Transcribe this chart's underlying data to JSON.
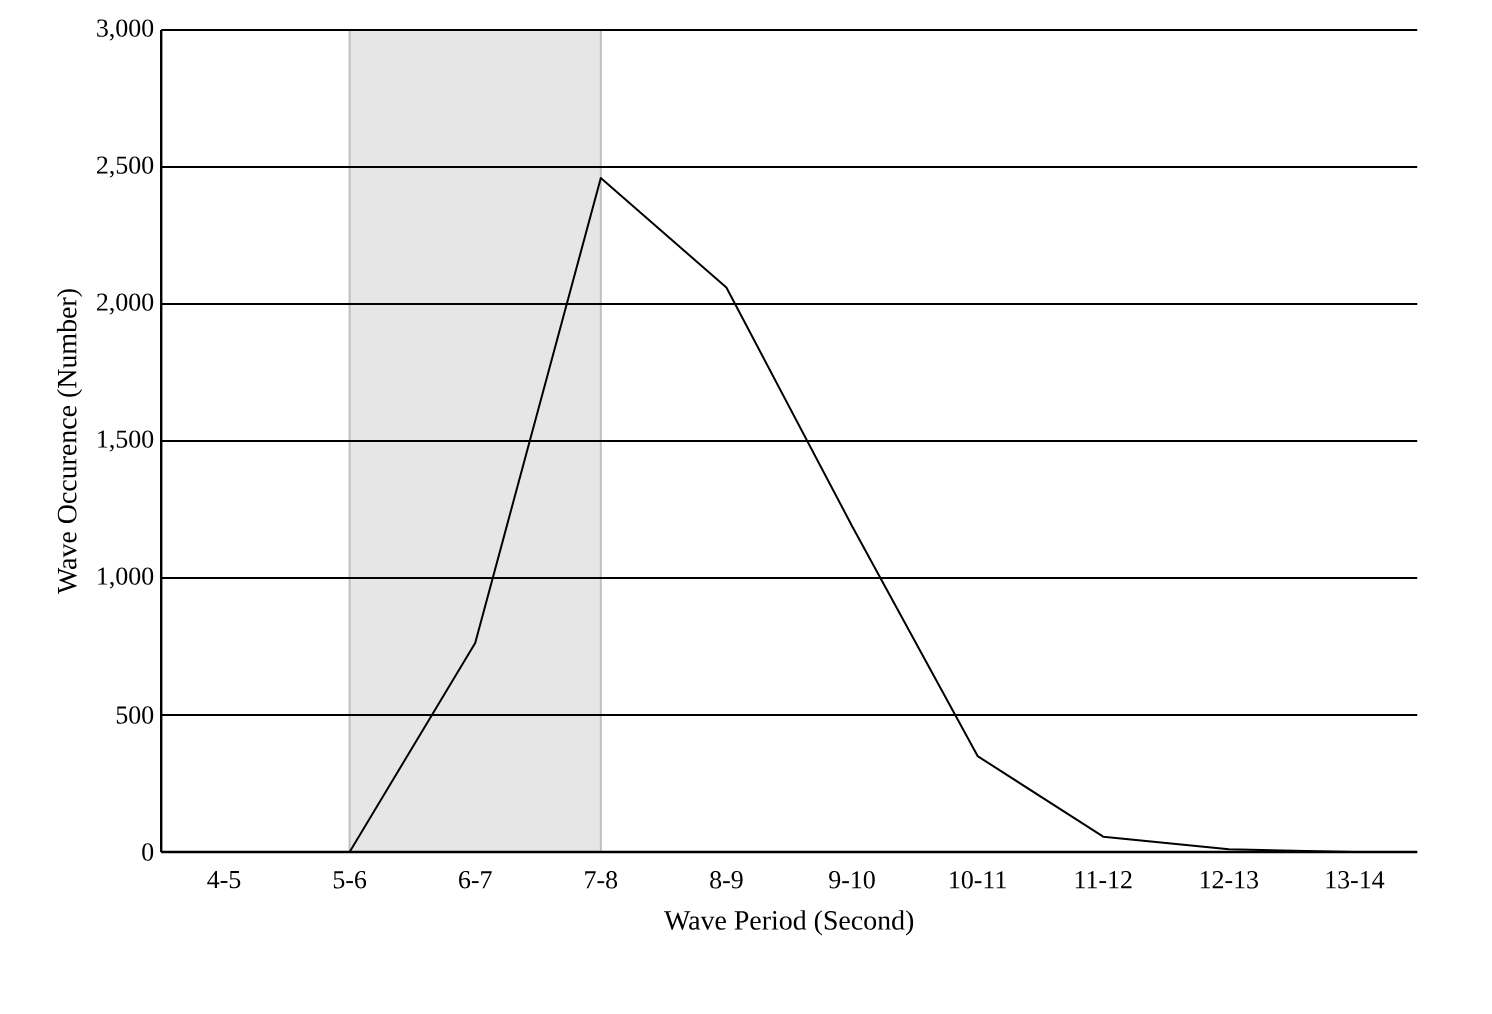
{
  "chart_data": {
    "type": "line",
    "xlabel": "Wave Period (Second)",
    "ylabel": "Wave Occurence (Number)",
    "categories": [
      "4-5",
      "5-6",
      "6-7",
      "7-8",
      "8-9",
      "9-10",
      "10-11",
      "11-12",
      "12-13",
      "13-14"
    ],
    "ylim": [
      0,
      3000
    ],
    "yticks": [
      0,
      500,
      {
        "value": 1000,
        "label": "1,000"
      },
      {
        "value": 1500,
        "label": "1,500"
      },
      {
        "value": 2000,
        "label": "2,000"
      },
      {
        "value": 2500,
        "label": "2,500"
      },
      {
        "value": 3000,
        "label": "3,000"
      }
    ],
    "grid": "y",
    "marker": "none",
    "line_style": "solid",
    "bands": [
      {
        "axis": "x",
        "from": "5-6",
        "to": "7-8",
        "color": "#e6e6e6"
      }
    ],
    "series": [
      {
        "color": "#000000",
        "values": [
          0,
          0,
          763,
          2460,
          2060,
          1190,
          350,
          56,
          10,
          0
        ]
      }
    ]
  }
}
